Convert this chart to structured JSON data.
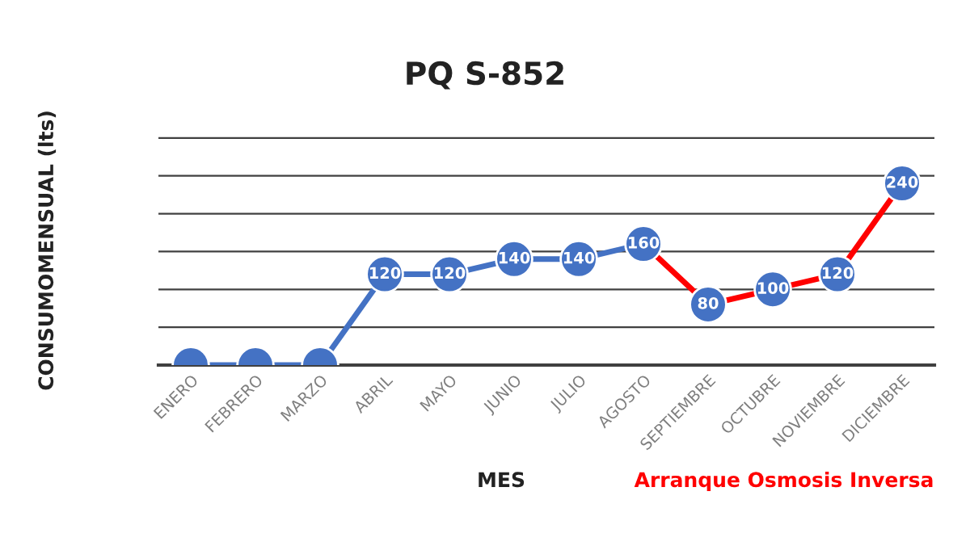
{
  "chart_data": {
    "type": "line",
    "title": "PQ S-852",
    "xlabel": "MES",
    "ylabel": "CONSUMOMENSUAL (lts)",
    "annotations": [
      "Arranque Osmosis Inversa"
    ],
    "categories": [
      "ENERO",
      "FEBRERO",
      "MARZO",
      "ABRIL",
      "MAYO",
      "JUNIO",
      "JULIO",
      "AGOSTO",
      "SEPTIEMBRE",
      "OCTUBRE",
      "NOVIEMBRE",
      "DICIEMBRE"
    ],
    "series": [
      {
        "color": "#4472c4",
        "marker": "none",
        "values": [
          0,
          0,
          0,
          120,
          120,
          140,
          140,
          160,
          null,
          null,
          null,
          null
        ]
      },
      {
        "color": "#ff0000",
        "marker": "none",
        "values": [
          null,
          null,
          null,
          null,
          null,
          null,
          null,
          160,
          80,
          100,
          120,
          240
        ]
      },
      {
        "type": "scatter",
        "color": "#4472c4",
        "marker": "circle",
        "values": [
          0,
          0,
          0,
          120,
          120,
          140,
          140,
          160,
          80,
          100,
          120,
          240
        ],
        "value_labels": [
          null,
          null,
          null,
          "120",
          "120",
          "140",
          "140",
          "160",
          "80",
          "100",
          "120",
          "240"
        ]
      }
    ],
    "ylim": [
      0,
      300
    ],
    "yticks": [
      0,
      50,
      100,
      150,
      200,
      250,
      300
    ],
    "grid": "y",
    "tick_labels": "x",
    "legend": false
  }
}
